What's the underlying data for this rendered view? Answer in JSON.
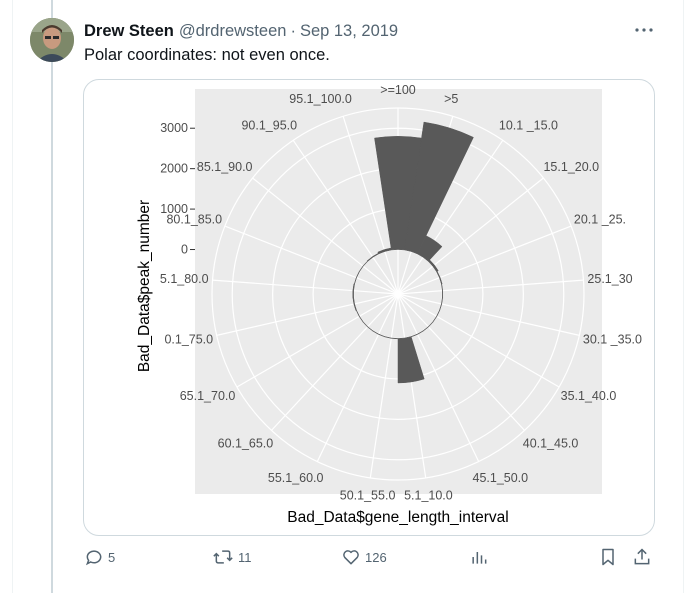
{
  "post": {
    "author_name": "Drew Steen",
    "author_handle": "@drdrewsteen",
    "separator": "·",
    "date": "Sep 13, 2019",
    "text": "Polar coordinates: not even once."
  },
  "actions": {
    "reply_count": "5",
    "repost_count": "11",
    "like_count": "126",
    "icons": [
      "reply-icon",
      "repost-icon",
      "like-icon",
      "views-icon",
      "bookmark-icon",
      "share-icon"
    ]
  },
  "colors": {
    "panel_bg": "#ebebeb",
    "grid": "#ffffff",
    "bar": "#595959",
    "accent_text": "#536471"
  },
  "chart_data": {
    "type": "bar",
    "coord": "polar",
    "xlabel": "Bad_Data$gene_length_interval",
    "ylabel": "Bad_Data$peak_number",
    "ytick_labels": [
      "0",
      "1000",
      "2000",
      "3000"
    ],
    "yticks": [
      0,
      1000,
      2000,
      3000
    ],
    "ylim": [
      -1100,
      3500
    ],
    "categories": [
      ">=100",
      ">5",
      "10.1 _15.0",
      "15.1_20.0",
      "20.1 _25.",
      "25.1_30",
      "30.1 _35.0",
      "35.1_40.0",
      "40.1_45.0",
      "45.1_50.0",
      "5.1_10.0",
      "50.1_55.0",
      "55.1_60.0",
      "60.1_65.0",
      "65.1_70.0",
      "0.1_75.0",
      "5.1_80.0",
      "80.1_85.0",
      "85.1_90.0",
      "90.1_95.0",
      "95.1_100.0"
    ],
    "values": [
      2800,
      3200,
      500,
      50,
      20,
      10,
      10,
      10,
      10,
      10,
      1100,
      10,
      10,
      10,
      10,
      20,
      20,
      10,
      10,
      20,
      50
    ],
    "grid": true
  }
}
